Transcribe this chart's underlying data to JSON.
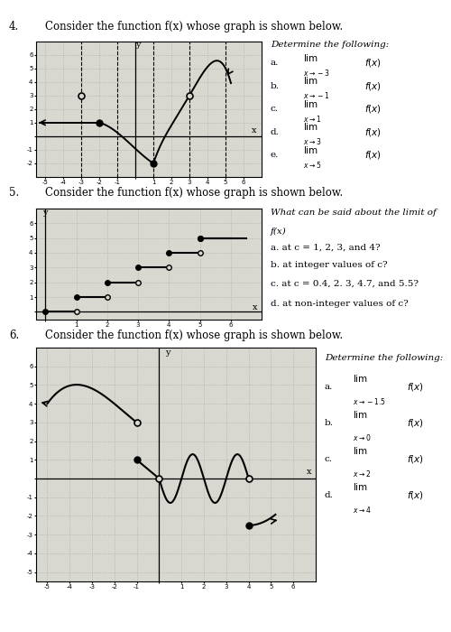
{
  "bg_color": "#ffffff",
  "graph_bg": "#d8d8d0",
  "p4_title": "Consider the function f(x) whose graph is shown below.",
  "p5_title": "Consider the function f(x) whose graph is shown below.",
  "p6_title": "Consider the function f(x) whose graph is shown below.",
  "p4_determine": "Determine the following:",
  "p4_q": [
    [
      "a.",
      "lim",
      "x→−3",
      "f(x)"
    ],
    [
      "b.",
      "lim",
      "x→−1",
      "f(x)"
    ],
    [
      "c.",
      "lim",
      "x→1",
      "f(x)"
    ],
    [
      "d.",
      "lim",
      "x→3",
      "f(x)"
    ],
    [
      "e.",
      "lim",
      "x→5",
      "f(x)"
    ]
  ],
  "p5_what": "What can be said about the limit of",
  "p5_fx": "f(x)",
  "p5_q": [
    "a. at c = 1, 2, 3, and 4?",
    "b. at integer values of c?",
    "c. at c = 0.4, 2. 3, 4.7, and 5.5?",
    "d. at non-integer values of c?"
  ],
  "p6_determine": "Determine the following:",
  "p6_q": [
    [
      "a.",
      "lim",
      "x→−1.5",
      "f(x)"
    ],
    [
      "b.",
      "lim",
      "x→0",
      "f(x)"
    ],
    [
      "c.",
      "lim",
      "x→2",
      "f(x)"
    ],
    [
      "d.",
      "lim",
      "x→4",
      "f(x)"
    ]
  ]
}
